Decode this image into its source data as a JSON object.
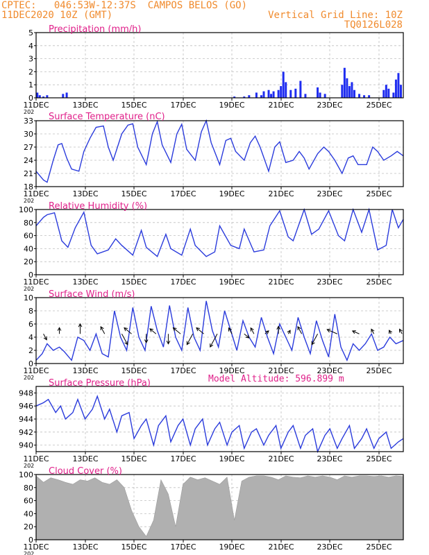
{
  "header": {
    "line1": "CPTEC:   046:53W-12:37S  CAMPOS BELOS (GO)",
    "line2": "11DEC2020 10Z (GMT)",
    "right1": "Vertical Grid Line: 10Z",
    "right2": "TQ0126L028"
  },
  "x_ticks": [
    "11DEC",
    "13DEC",
    "15DEC",
    "17DEC",
    "19DEC",
    "21DEC",
    "23DEC",
    "25DEC"
  ],
  "x_tick_suffix": "202",
  "chart_data": [
    {
      "id": "precip",
      "type": "bar",
      "title": "Precipitation (mm/h)",
      "ylim": [
        0,
        5
      ],
      "yticks": [
        "0",
        "1",
        "2",
        "3",
        "4",
        "5"
      ],
      "x_range": [
        0,
        15
      ],
      "color": "#1e2cf0",
      "x": [
        0.05,
        0.15,
        0.3,
        0.45,
        1.1,
        1.25,
        8.1,
        8.5,
        8.7,
        9.0,
        9.2,
        9.3,
        9.5,
        9.6,
        9.7,
        9.9,
        10.0,
        10.1,
        10.2,
        10.4,
        10.6,
        10.8,
        11.0,
        11.5,
        11.6,
        11.8,
        12.5,
        12.6,
        12.7,
        12.8,
        12.9,
        13.0,
        13.2,
        13.4,
        13.6,
        14.2,
        14.3,
        14.4,
        14.6,
        14.7,
        14.8,
        14.9
      ],
      "values": [
        0.4,
        0.2,
        0.1,
        0.2,
        0.3,
        0.4,
        0.1,
        0.1,
        0.2,
        0.4,
        0.2,
        0.5,
        0.6,
        0.3,
        0.5,
        0.6,
        0.9,
        2.0,
        1.2,
        0.6,
        0.7,
        1.3,
        0.3,
        0.8,
        0.4,
        0.3,
        1.0,
        2.3,
        1.5,
        0.9,
        1.2,
        0.6,
        0.3,
        0.2,
        0.2,
        0.6,
        1.0,
        0.7,
        0.4,
        1.4,
        1.9,
        1.0
      ]
    },
    {
      "id": "temp",
      "type": "line",
      "title": "Surface Temperature (nC)",
      "ylim": [
        18,
        33
      ],
      "yticks": [
        "18",
        "21",
        "24",
        "27",
        "30",
        "33"
      ],
      "x_range": [
        0,
        15
      ],
      "color": "#2a3bdc",
      "x": [
        0,
        0.3,
        0.45,
        0.7,
        0.9,
        1.05,
        1.25,
        1.45,
        1.75,
        1.95,
        2.2,
        2.45,
        2.75,
        2.95,
        3.15,
        3.5,
        3.75,
        3.95,
        4.15,
        4.5,
        4.75,
        4.95,
        5.15,
        5.5,
        5.75,
        5.95,
        6.15,
        6.5,
        6.75,
        6.95,
        7.15,
        7.5,
        7.75,
        7.95,
        8.15,
        8.5,
        8.75,
        8.95,
        9.15,
        9.5,
        9.75,
        9.95,
        10.2,
        10.5,
        10.75,
        10.95,
        11.15,
        11.5,
        11.75,
        11.95,
        12.2,
        12.5,
        12.75,
        12.95,
        13.15,
        13.5,
        13.75,
        13.95,
        14.2,
        14.5,
        14.75,
        15
      ],
      "values": [
        21.5,
        19.5,
        19,
        24,
        27.5,
        27.8,
        24.5,
        22,
        21.5,
        26,
        29,
        31.5,
        31.8,
        27,
        24,
        30,
        32,
        32.3,
        27,
        23,
        30,
        32.8,
        27.5,
        23.5,
        30,
        32.2,
        26.5,
        24,
        30.5,
        33,
        28,
        23,
        28.5,
        29,
        26,
        24,
        28,
        29.5,
        27,
        21.5,
        27,
        28.2,
        23.5,
        24,
        26,
        24.5,
        22,
        25.5,
        27,
        26,
        24,
        21,
        24.5,
        25,
        23,
        23,
        27,
        26,
        24,
        25,
        26,
        25
      ]
    },
    {
      "id": "humidity",
      "type": "line",
      "title": "Relative Humidity (%)",
      "ylim": [
        0,
        100
      ],
      "yticks": [
        "0",
        "20",
        "40",
        "60",
        "80",
        "100"
      ],
      "x_range": [
        0,
        15
      ],
      "color": "#2a3bdc",
      "x": [
        0,
        0.3,
        0.45,
        0.75,
        1.05,
        1.3,
        1.6,
        1.95,
        2.25,
        2.5,
        2.95,
        3.25,
        3.5,
        3.95,
        4.3,
        4.5,
        4.95,
        5.3,
        5.5,
        5.95,
        6.3,
        6.5,
        6.95,
        7.3,
        7.5,
        7.95,
        8.3,
        8.5,
        8.9,
        9.3,
        9.55,
        9.95,
        10.3,
        10.5,
        10.95,
        11.25,
        11.55,
        11.95,
        12.35,
        12.6,
        12.95,
        13.3,
        13.6,
        13.95,
        14.3,
        14.55,
        14.8,
        15
      ],
      "values": [
        75,
        88,
        92,
        95,
        52,
        42,
        72,
        96,
        45,
        32,
        38,
        55,
        45,
        30,
        68,
        42,
        28,
        62,
        40,
        30,
        70,
        45,
        28,
        35,
        75,
        45,
        40,
        70,
        35,
        38,
        75,
        98,
        58,
        52,
        100,
        62,
        70,
        98,
        60,
        52,
        100,
        65,
        100,
        38,
        45,
        100,
        72,
        85
      ]
    },
    {
      "id": "wind",
      "type": "line",
      "title": "Surface Wind (m/s)",
      "ylim": [
        0,
        10
      ],
      "yticks": [
        "0",
        "2",
        "4",
        "6",
        "8",
        "10"
      ],
      "x_range": [
        0,
        15
      ],
      "color": "#2a3bdc",
      "x": [
        0,
        0.25,
        0.45,
        0.7,
        0.95,
        1.15,
        1.45,
        1.7,
        1.95,
        2.2,
        2.45,
        2.7,
        2.95,
        3.2,
        3.45,
        3.7,
        3.95,
        4.2,
        4.45,
        4.7,
        4.95,
        5.2,
        5.45,
        5.7,
        5.95,
        6.2,
        6.45,
        6.7,
        6.95,
        7.2,
        7.45,
        7.7,
        7.95,
        8.2,
        8.45,
        8.7,
        8.95,
        9.2,
        9.45,
        9.7,
        9.95,
        10.2,
        10.45,
        10.7,
        10.95,
        11.2,
        11.45,
        11.7,
        11.95,
        12.2,
        12.45,
        12.7,
        12.95,
        13.2,
        13.45,
        13.7,
        13.95,
        14.2,
        14.45,
        14.7,
        15
      ],
      "values": [
        0.5,
        1.5,
        3,
        2,
        2.5,
        1.8,
        0.5,
        4,
        3.5,
        2,
        4.5,
        1.5,
        1,
        8,
        4,
        2,
        8.5,
        4,
        2,
        8.7,
        5,
        2.5,
        8.8,
        4,
        2,
        8.5,
        4,
        2,
        9.5,
        5,
        2.5,
        8,
        5,
        2,
        6.5,
        4,
        2.5,
        7,
        4,
        1.5,
        6,
        4,
        2,
        7,
        4,
        1.5,
        6.5,
        3.5,
        1,
        7.5,
        2.5,
        0.5,
        3,
        2,
        3,
        4.5,
        2,
        2.5,
        4,
        3,
        3.5
      ],
      "arrows": [
        [
          0.3,
          -0.4,
          0.25
        ],
        [
          0.95,
          0.5,
          0.25
        ],
        [
          1.8,
          0.5,
          0.4
        ],
        [
          2.8,
          0.6,
          0.3
        ],
        [
          3.5,
          -0.4,
          0.45
        ],
        [
          3.9,
          0.7,
          0.3
        ],
        [
          4.5,
          -0.5,
          0.35
        ],
        [
          4.9,
          0.7,
          0.25
        ],
        [
          5.4,
          -0.5,
          0.4
        ],
        [
          5.9,
          0.7,
          0.3
        ],
        [
          6.4,
          -0.6,
          0.45
        ],
        [
          6.85,
          0.7,
          0.3
        ],
        [
          7.4,
          -0.6,
          0.55
        ],
        [
          8.0,
          0.6,
          0.25
        ],
        [
          8.5,
          -0.3,
          0.2
        ],
        [
          8.9,
          0.6,
          0.25
        ],
        [
          9.35,
          0.3,
          0.15
        ],
        [
          9.9,
          0.5,
          0.3
        ],
        [
          10.3,
          0.4,
          0.15
        ],
        [
          10.85,
          0.6,
          0.3
        ],
        [
          11.5,
          -0.6,
          0.45
        ],
        [
          12.3,
          0.8,
          0.3
        ],
        [
          13.2,
          0.8,
          0.2
        ],
        [
          13.8,
          0.6,
          0.2
        ],
        [
          14.5,
          0.6,
          0.15
        ],
        [
          14.95,
          0.6,
          0.2
        ]
      ]
    },
    {
      "id": "pressure",
      "type": "line",
      "title": "Surface Pressure (hPa)",
      "ylim": [
        939,
        949
      ],
      "yticks": [
        "940",
        "942",
        "944",
        "946",
        "948"
      ],
      "x_range": [
        0,
        15
      ],
      "color": "#2a3bdc",
      "x": [
        0,
        0.3,
        0.5,
        0.8,
        1.0,
        1.2,
        1.5,
        1.7,
        2.0,
        2.3,
        2.5,
        2.8,
        3.0,
        3.3,
        3.5,
        3.8,
        4.0,
        4.3,
        4.5,
        4.8,
        5.0,
        5.3,
        5.5,
        5.8,
        6.0,
        6.3,
        6.5,
        6.8,
        7.0,
        7.3,
        7.5,
        7.8,
        8.0,
        8.3,
        8.5,
        8.8,
        9.0,
        9.3,
        9.5,
        9.8,
        10.0,
        10.3,
        10.5,
        10.8,
        11.0,
        11.3,
        11.5,
        11.8,
        12.0,
        12.3,
        12.5,
        12.8,
        13.0,
        13.3,
        13.5,
        13.8,
        14.0,
        14.3,
        14.5,
        14.8,
        15
      ],
      "values": [
        946,
        946.5,
        947,
        945,
        946,
        944,
        945,
        947,
        944,
        945.5,
        947.5,
        944,
        945.5,
        942,
        944.5,
        945,
        941,
        943,
        944,
        940,
        943,
        944.5,
        940.5,
        943,
        944,
        940,
        942.5,
        944,
        940,
        942.5,
        943.5,
        940,
        942,
        943,
        939.5,
        942,
        942.5,
        940,
        941.5,
        943,
        939.5,
        942,
        943,
        939.5,
        941.5,
        942.5,
        939,
        941.5,
        942.5,
        939.5,
        941,
        943,
        939.5,
        941,
        942.5,
        939.5,
        941,
        942,
        939.5,
        940.5,
        941
      ]
    },
    {
      "id": "cloud",
      "type": "area",
      "title": "Cloud Cover (%)",
      "ylim": [
        0,
        100
      ],
      "yticks": [
        "0",
        "20",
        "40",
        "60",
        "80",
        "100"
      ],
      "x_range": [
        0,
        15
      ],
      "color": "#b0b0b0",
      "x": [
        0,
        0.3,
        0.6,
        0.9,
        1.2,
        1.5,
        1.8,
        2.1,
        2.4,
        2.7,
        3.0,
        3.3,
        3.6,
        3.9,
        4.2,
        4.5,
        4.8,
        5.1,
        5.4,
        5.7,
        6.0,
        6.3,
        6.6,
        6.9,
        7.2,
        7.5,
        7.8,
        8.1,
        8.4,
        8.7,
        9.0,
        9.3,
        9.6,
        9.9,
        10.2,
        10.5,
        10.8,
        11.1,
        11.4,
        11.7,
        12.0,
        12.3,
        12.6,
        12.9,
        13.2,
        13.5,
        13.8,
        14.1,
        14.4,
        14.7,
        15
      ],
      "values": [
        98,
        88,
        95,
        92,
        88,
        85,
        92,
        90,
        95,
        88,
        85,
        92,
        80,
        45,
        20,
        5,
        30,
        92,
        70,
        20,
        85,
        96,
        92,
        95,
        90,
        85,
        96,
        30,
        90,
        96,
        98,
        98,
        96,
        92,
        98,
        96,
        95,
        98,
        96,
        98,
        96,
        92,
        98,
        96,
        98,
        98,
        97,
        98,
        96,
        98,
        97
      ]
    }
  ],
  "extra": {
    "model_altitude": "Model Altitude: 596.899 m"
  }
}
